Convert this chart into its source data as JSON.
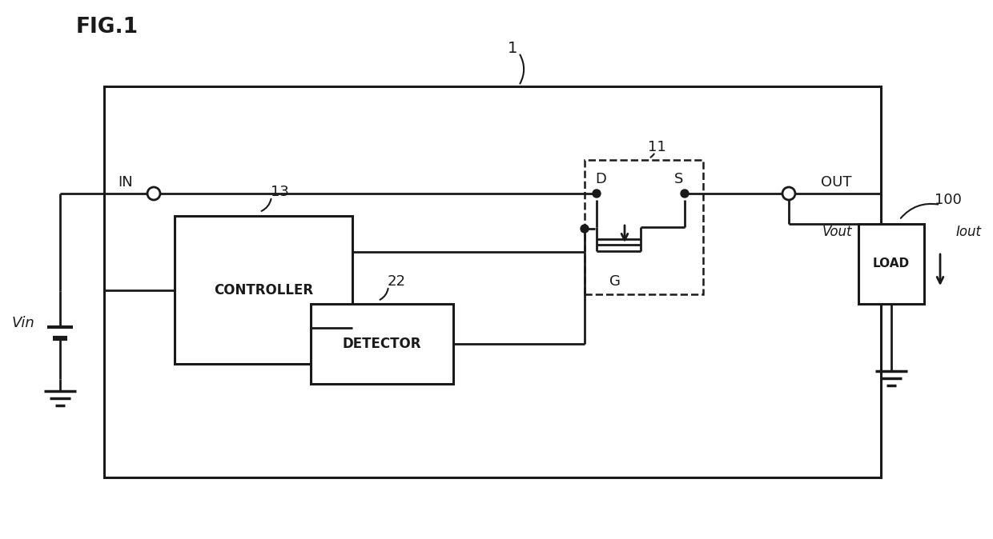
{
  "fig_label": "FIG.1",
  "bg_color": "#ffffff",
  "line_color": "#1a1a1a",
  "label_1": "1",
  "label_11": "11",
  "label_13": "13",
  "label_22": "22",
  "label_100": "100",
  "text_IN": "IN",
  "text_OUT": "OUT",
  "text_Vin": "Vin",
  "text_Vout": "Vout",
  "text_Iout": "Iout",
  "text_D": "D",
  "text_S": "S",
  "text_G": "G",
  "text_CONTROLLER": "CONTROLLER",
  "text_DETECTOR": "DETECTOR",
  "text_LOAD": "LOAD",
  "lw_main": 2.2,
  "lw_wire": 2.0,
  "lw_dash": 1.8,
  "node_r": 6
}
